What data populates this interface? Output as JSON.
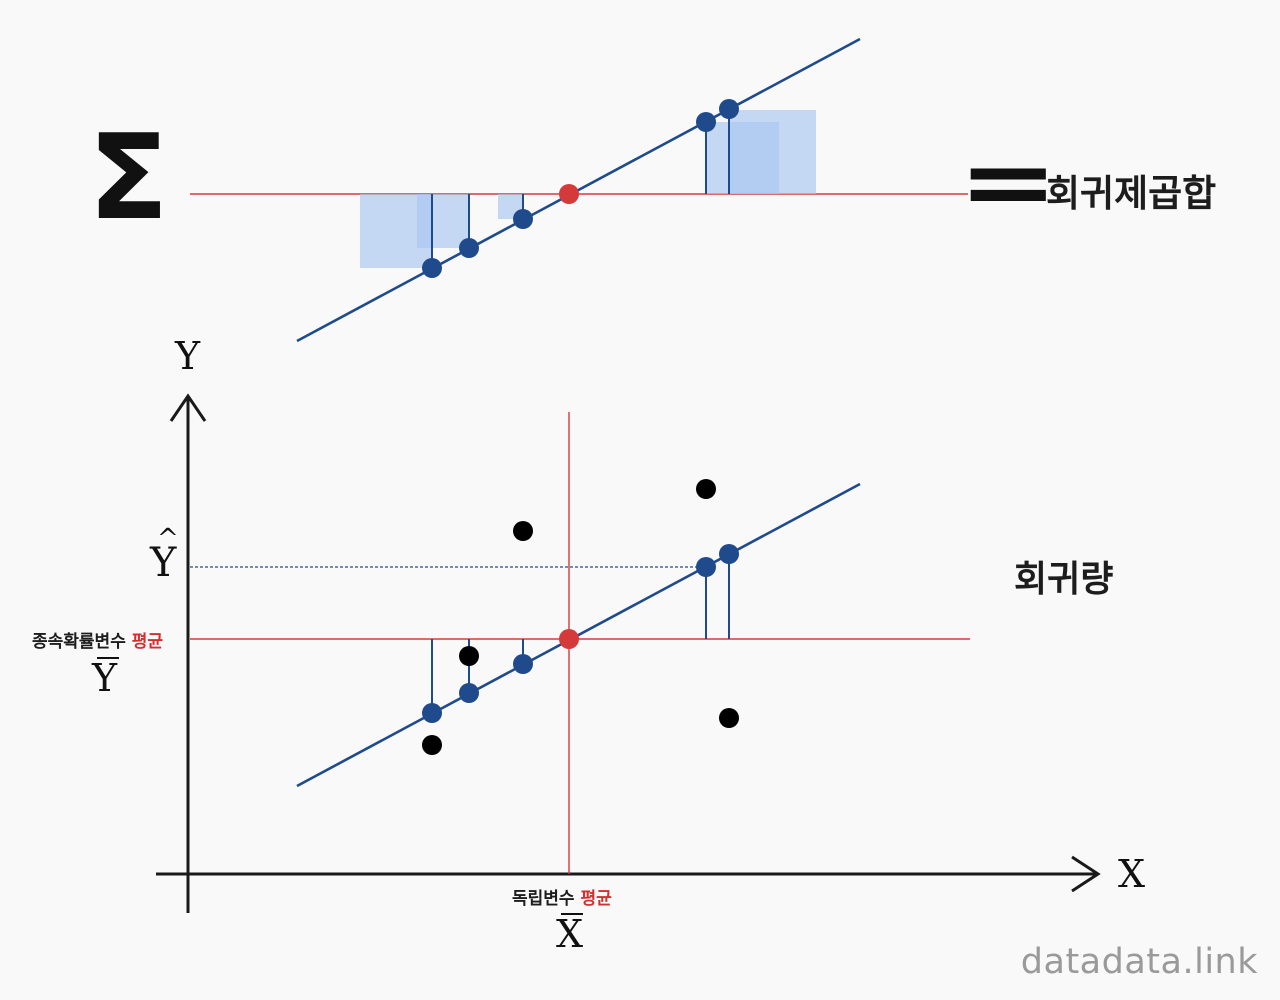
{
  "title_formula": {
    "sigma": "Σ",
    "equals": "=",
    "result": "회귀제곱합"
  },
  "regression_label": "회귀량",
  "axes": {
    "y": "Y",
    "x": "X"
  },
  "y_hat": "Y",
  "y_hat_accent": "^",
  "dependent_mean": {
    "text": "종속확률변수 ",
    "accent": "평균",
    "symbol": "Y"
  },
  "independent_mean": {
    "text": "독립변수 ",
    "accent": "평균",
    "symbol": "X"
  },
  "watermark": "datadata.link",
  "colors": {
    "line": "#1f4a8c",
    "mean": "#d53a3a",
    "square_fill": "#a9c6ef",
    "observed": "#000000",
    "axis": "#1a1a1a"
  }
}
